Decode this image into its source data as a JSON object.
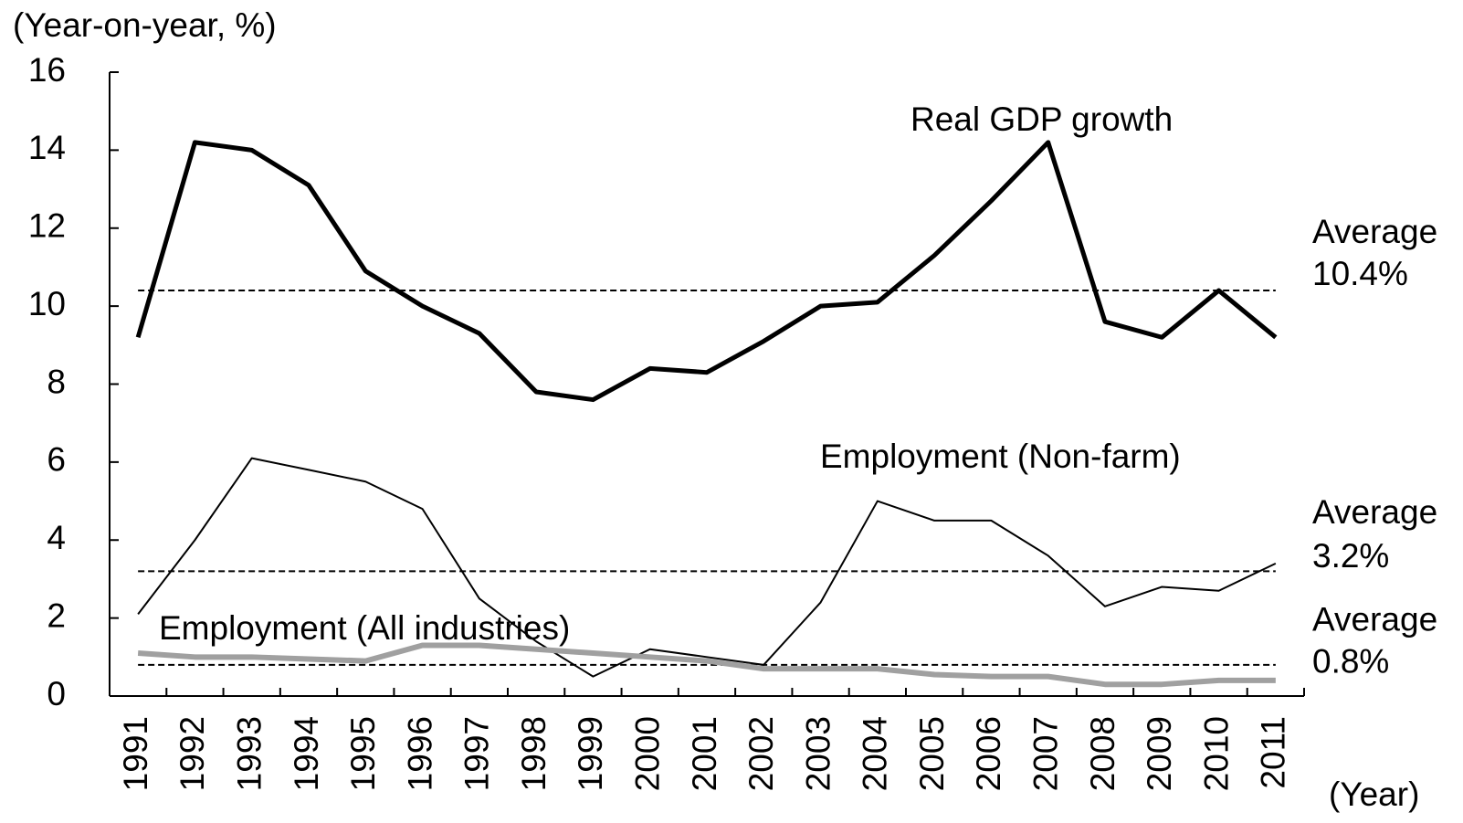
{
  "chart_data": {
    "type": "line",
    "y_label": "(Year-on-year,  %)",
    "x_label": "(Year)",
    "categories": [
      "1991",
      "1992",
      "1993",
      "1994",
      "1995",
      "1996",
      "1997",
      "1998",
      "1999",
      "2000",
      "2001",
      "2002",
      "2003",
      "2004",
      "2005",
      "2006",
      "2007",
      "2008",
      "2009",
      "2010",
      "2011"
    ],
    "series": [
      {
        "name": "Real GDP growth",
        "color": "#000000",
        "values": [
          9.2,
          14.2,
          14.0,
          13.1,
          10.9,
          10.0,
          9.3,
          7.8,
          7.6,
          8.4,
          8.3,
          9.1,
          10.0,
          10.1,
          11.3,
          12.7,
          14.2,
          9.6,
          9.2,
          10.4,
          9.2
        ]
      },
      {
        "name": "Employment (Non-farm)",
        "color": "#000000",
        "values": [
          2.1,
          4.0,
          6.1,
          5.8,
          5.5,
          4.8,
          2.5,
          1.4,
          0.5,
          1.2,
          1.0,
          0.8,
          2.4,
          5.0,
          4.5,
          4.5,
          3.6,
          2.3,
          2.8,
          2.7,
          3.4
        ]
      },
      {
        "name": "Employment (All industries)",
        "color": "#a0a0a0",
        "values": [
          1.1,
          1.0,
          1.0,
          0.95,
          0.9,
          1.3,
          1.3,
          1.2,
          1.1,
          1.0,
          0.9,
          0.7,
          0.7,
          0.7,
          0.55,
          0.5,
          0.5,
          0.3,
          0.3,
          0.4,
          0.4
        ]
      }
    ],
    "reference_lines": [
      {
        "label": "Average",
        "value": 10.4,
        "value_label": "10.4%"
      },
      {
        "label": "Average",
        "value": 3.2,
        "value_label": "3.2%"
      },
      {
        "label": "Average",
        "value": 0.8,
        "value_label": "0.8%"
      }
    ],
    "ylim": [
      0,
      16
    ],
    "yticks": [
      0,
      2,
      4,
      6,
      8,
      10,
      12,
      14,
      16
    ]
  }
}
